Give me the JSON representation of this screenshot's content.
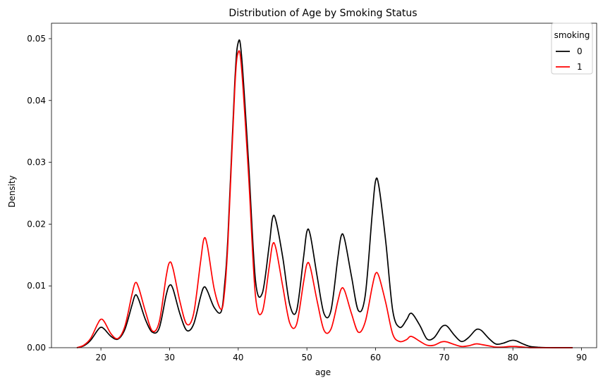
{
  "chart_data": {
    "type": "line",
    "title": "Distribution of Age by Smoking Status",
    "xlabel": "age",
    "ylabel": "Density",
    "xlim": [
      12.8,
      92.2
    ],
    "ylim": [
      0,
      0.0525
    ],
    "xticks": [
      20,
      30,
      40,
      50,
      60,
      70,
      80,
      90
    ],
    "yticks": [
      0.0,
      0.01,
      0.02,
      0.03,
      0.04,
      0.05
    ],
    "ytick_labels": [
      "0.00",
      "0.01",
      "0.02",
      "0.03",
      "0.04",
      "0.05"
    ],
    "grid": false,
    "legend": {
      "title": "smoking",
      "placement": "top-right"
    },
    "series": [
      {
        "name": "0",
        "color": "#000000",
        "x": [
          16.5,
          17.5,
          18.5,
          19.5,
          20,
          20.5,
          21.5,
          22.5,
          23.5,
          24.5,
          25,
          25.5,
          26.5,
          27.5,
          28.5,
          29.5,
          30,
          30.5,
          31.5,
          32.5,
          33.5,
          34.5,
          35,
          35.5,
          36.5,
          37.5,
          38,
          38.5,
          39.5,
          40,
          40.5,
          41.5,
          42.5,
          43.5,
          44.5,
          45,
          45.5,
          46.5,
          47.5,
          48.5,
          49.5,
          50,
          50.5,
          51.5,
          52.5,
          53.5,
          54.5,
          55,
          55.5,
          56.5,
          57.5,
          58.5,
          59.5,
          60,
          60.5,
          61.5,
          62.5,
          63.5,
          64.5,
          65,
          65.5,
          66.5,
          67.5,
          68.5,
          69.5,
          70,
          70.5,
          71.5,
          72.5,
          73.5,
          74.5,
          75,
          75.5,
          76.5,
          77.5,
          78.5,
          79.5,
          80,
          80.5,
          81.5,
          82.5,
          84,
          86,
          88.7
        ],
        "y": [
          0.0,
          0.0003,
          0.0012,
          0.0028,
          0.0033,
          0.003,
          0.0018,
          0.0014,
          0.003,
          0.0068,
          0.0085,
          0.0078,
          0.0045,
          0.0025,
          0.0032,
          0.0085,
          0.0101,
          0.0095,
          0.0055,
          0.0028,
          0.0038,
          0.0082,
          0.0098,
          0.0092,
          0.0065,
          0.0058,
          0.01,
          0.018,
          0.043,
          0.0494,
          0.047,
          0.03,
          0.011,
          0.0088,
          0.0165,
          0.021,
          0.0205,
          0.0145,
          0.007,
          0.006,
          0.0145,
          0.0188,
          0.0182,
          0.0115,
          0.0055,
          0.006,
          0.0145,
          0.0181,
          0.0175,
          0.0115,
          0.006,
          0.0085,
          0.0215,
          0.027,
          0.026,
          0.017,
          0.006,
          0.0033,
          0.0045,
          0.0055,
          0.0053,
          0.0035,
          0.0014,
          0.0016,
          0.0032,
          0.0036,
          0.0034,
          0.002,
          0.001,
          0.0016,
          0.0028,
          0.003,
          0.0027,
          0.0015,
          0.0006,
          0.0007,
          0.0011,
          0.0012,
          0.0011,
          0.0006,
          0.0002,
          5e-05,
          0.0,
          0.0
        ]
      },
      {
        "name": "1",
        "color": "#ff0000",
        "x": [
          16.5,
          17.5,
          18.5,
          19.5,
          20,
          20.5,
          21.5,
          22.5,
          23.5,
          24.5,
          25,
          25.5,
          26.5,
          27.5,
          28.5,
          29.5,
          30,
          30.5,
          31.5,
          32.5,
          33.5,
          34.5,
          35,
          35.5,
          36.5,
          37.5,
          38,
          38.5,
          39.5,
          40,
          40.5,
          41.5,
          42.5,
          43.5,
          44.5,
          45,
          45.5,
          46.5,
          47.5,
          48.5,
          49.5,
          50,
          50.5,
          51.5,
          52.5,
          53.5,
          54.5,
          55,
          55.5,
          56.5,
          57.5,
          58.5,
          59.5,
          60,
          60.5,
          61.5,
          62.5,
          63.5,
          64.5,
          65,
          65.5,
          66.5,
          67.5,
          68.5,
          69.5,
          70,
          70.5,
          71.5,
          72.5,
          73.5,
          74.5,
          75,
          75.5,
          76.5,
          77.5,
          78.5,
          79.5,
          80,
          80.5,
          81.5,
          82.5,
          84,
          86,
          88.7
        ],
        "y": [
          0.0,
          0.0004,
          0.0015,
          0.0038,
          0.0046,
          0.0042,
          0.0022,
          0.0015,
          0.0035,
          0.0085,
          0.0105,
          0.0097,
          0.0058,
          0.0027,
          0.0042,
          0.0115,
          0.0138,
          0.0128,
          0.0075,
          0.0038,
          0.0055,
          0.0138,
          0.0176,
          0.0165,
          0.0095,
          0.0062,
          0.009,
          0.017,
          0.042,
          0.0478,
          0.045,
          0.028,
          0.0085,
          0.0058,
          0.013,
          0.0167,
          0.016,
          0.0098,
          0.004,
          0.0038,
          0.0105,
          0.0135,
          0.013,
          0.0075,
          0.0028,
          0.003,
          0.0075,
          0.0095,
          0.0092,
          0.0055,
          0.0025,
          0.0042,
          0.0098,
          0.012,
          0.0115,
          0.0072,
          0.0022,
          0.001,
          0.0013,
          0.0018,
          0.0017,
          0.001,
          0.0004,
          0.0004,
          0.0009,
          0.001,
          0.0009,
          0.0005,
          0.0002,
          0.0003,
          0.0006,
          0.0006,
          0.0005,
          0.0003,
          0.0001,
          0.0001,
          0.0002,
          0.0002,
          0.0002,
          0.0001,
          0.0,
          0.0,
          0.0,
          0.0
        ]
      }
    ]
  }
}
